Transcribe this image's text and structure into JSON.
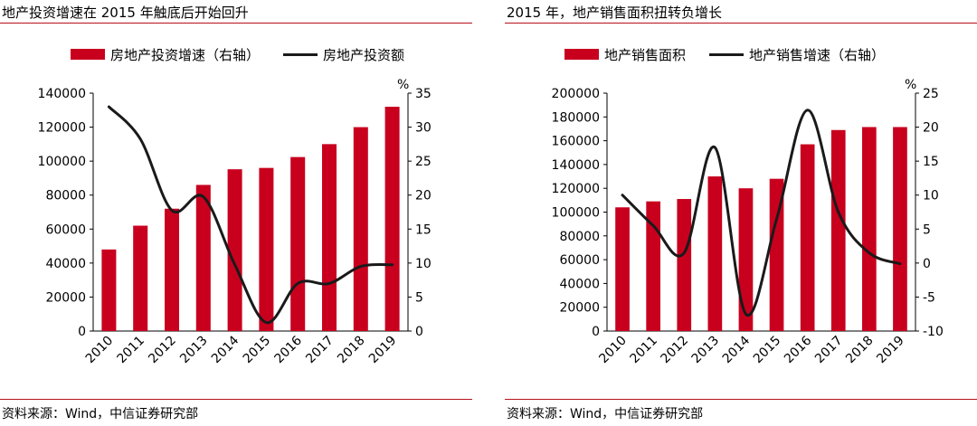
{
  "chart_data": [
    {
      "type": "bar",
      "title": "地产投资增速在 2015 年触底后开始回升",
      "source": "资料来源：Wind，中信证券研究部",
      "categories": [
        "2010",
        "2011",
        "2012",
        "2013",
        "2014",
        "2015",
        "2016",
        "2017",
        "2018",
        "2019"
      ],
      "series": [
        {
          "name": "房地产投资增速（右轴）",
          "kind": "bar",
          "axis": "right",
          "color": "#c8001e",
          "values": [
            12,
            15.5,
            18,
            21.5,
            23.8,
            24,
            25.6,
            27.5,
            30,
            33
          ]
        },
        {
          "name": "房地产投资额",
          "kind": "line",
          "axis": "left",
          "color": "#1a1a1a",
          "values": [
            132000,
            113000,
            71000,
            79000,
            39000,
            5000,
            28000,
            28000,
            38000,
            39000
          ]
        }
      ],
      "yleft": {
        "min": 0,
        "max": 140000,
        "step": 20000,
        "ticks": [
          "0",
          "20000",
          "40000",
          "60000",
          "80000",
          "100000",
          "120000",
          "140000"
        ]
      },
      "yright": {
        "min": 0,
        "max": 35,
        "step": 5,
        "unit": "%",
        "ticks": [
          "0",
          "5",
          "10",
          "15",
          "20",
          "25",
          "30",
          "35"
        ]
      },
      "legend": "top"
    },
    {
      "type": "bar",
      "title": "2015 年，地产销售面积扭转负增长",
      "source": "资料来源：Wind，中信证券研究部",
      "categories": [
        "2010",
        "2011",
        "2012",
        "2013",
        "2014",
        "2015",
        "2016",
        "2017",
        "2018",
        "2019"
      ],
      "series": [
        {
          "name": "地产销售面积",
          "kind": "bar",
          "axis": "left",
          "color": "#c8001e",
          "values": [
            104000,
            109000,
            111000,
            130000,
            120000,
            128000,
            157000,
            169000,
            171500,
            171500
          ]
        },
        {
          "name": "地产销售增速（右轴）",
          "kind": "line",
          "axis": "right",
          "color": "#1a1a1a",
          "values": [
            10,
            5.5,
            1.5,
            17,
            -7.5,
            6.5,
            22.5,
            7.5,
            1.5,
            -0.1
          ]
        }
      ],
      "yleft": {
        "min": 0,
        "max": 200000,
        "step": 20000,
        "ticks": [
          "0",
          "20000",
          "40000",
          "60000",
          "80000",
          "100000",
          "120000",
          "140000",
          "160000",
          "180000",
          "200000"
        ]
      },
      "yright": {
        "min": -10,
        "max": 25,
        "step": 5,
        "unit": "%",
        "ticks": [
          "-10",
          "-5",
          "0",
          "5",
          "10",
          "15",
          "20",
          "25"
        ]
      },
      "legend": "top"
    }
  ]
}
